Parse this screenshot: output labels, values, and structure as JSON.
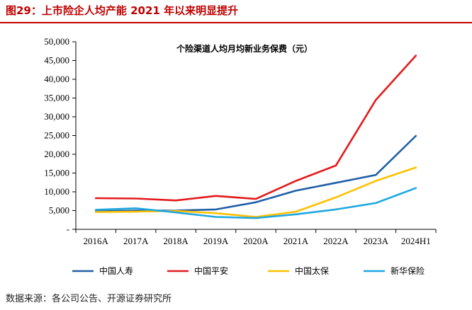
{
  "figure": {
    "title": "图29：上市险企人均产能 2021 年以来明显提升",
    "source": "数据来源：各公司公告、开源证券研究所"
  },
  "chart_data": {
    "type": "line",
    "title": "个险渠道人均月均新业务保费（元）",
    "xlabel": "",
    "ylabel": "",
    "categories": [
      "2016A",
      "2017A",
      "2018A",
      "2019A",
      "2020A",
      "2021A",
      "2022A",
      "2023A",
      "2024H1"
    ],
    "ylim": [
      0,
      50000
    ],
    "yticks": [
      0,
      5000,
      10000,
      15000,
      20000,
      25000,
      30000,
      35000,
      40000,
      45000,
      50000
    ],
    "ytick_labels": [
      "-",
      "5,000",
      "10,000",
      "15,000",
      "20,000",
      "25,000",
      "30,000",
      "35,000",
      "40,000",
      "45,000",
      "50,000"
    ],
    "grid": false,
    "legend_position": "bottom",
    "series": [
      {
        "name": "中国人寿",
        "color": "#1f5fa8",
        "values": [
          4800,
          5000,
          5000,
          5300,
          7200,
          10300,
          12400,
          14500,
          24900
        ]
      },
      {
        "name": "中国平安",
        "color": "#e31a1c",
        "values": [
          8300,
          8200,
          7700,
          8900,
          8100,
          12900,
          17000,
          34500,
          46300
        ]
      },
      {
        "name": "中国太保",
        "color": "#ffc000",
        "values": [
          4600,
          4700,
          4900,
          4300,
          3300,
          4700,
          8500,
          12900,
          16500
        ]
      },
      {
        "name": "新华保险",
        "color": "#1ea7e1",
        "values": [
          5200,
          5600,
          4500,
          3300,
          3000,
          4000,
          5300,
          7000,
          11000
        ]
      }
    ]
  }
}
